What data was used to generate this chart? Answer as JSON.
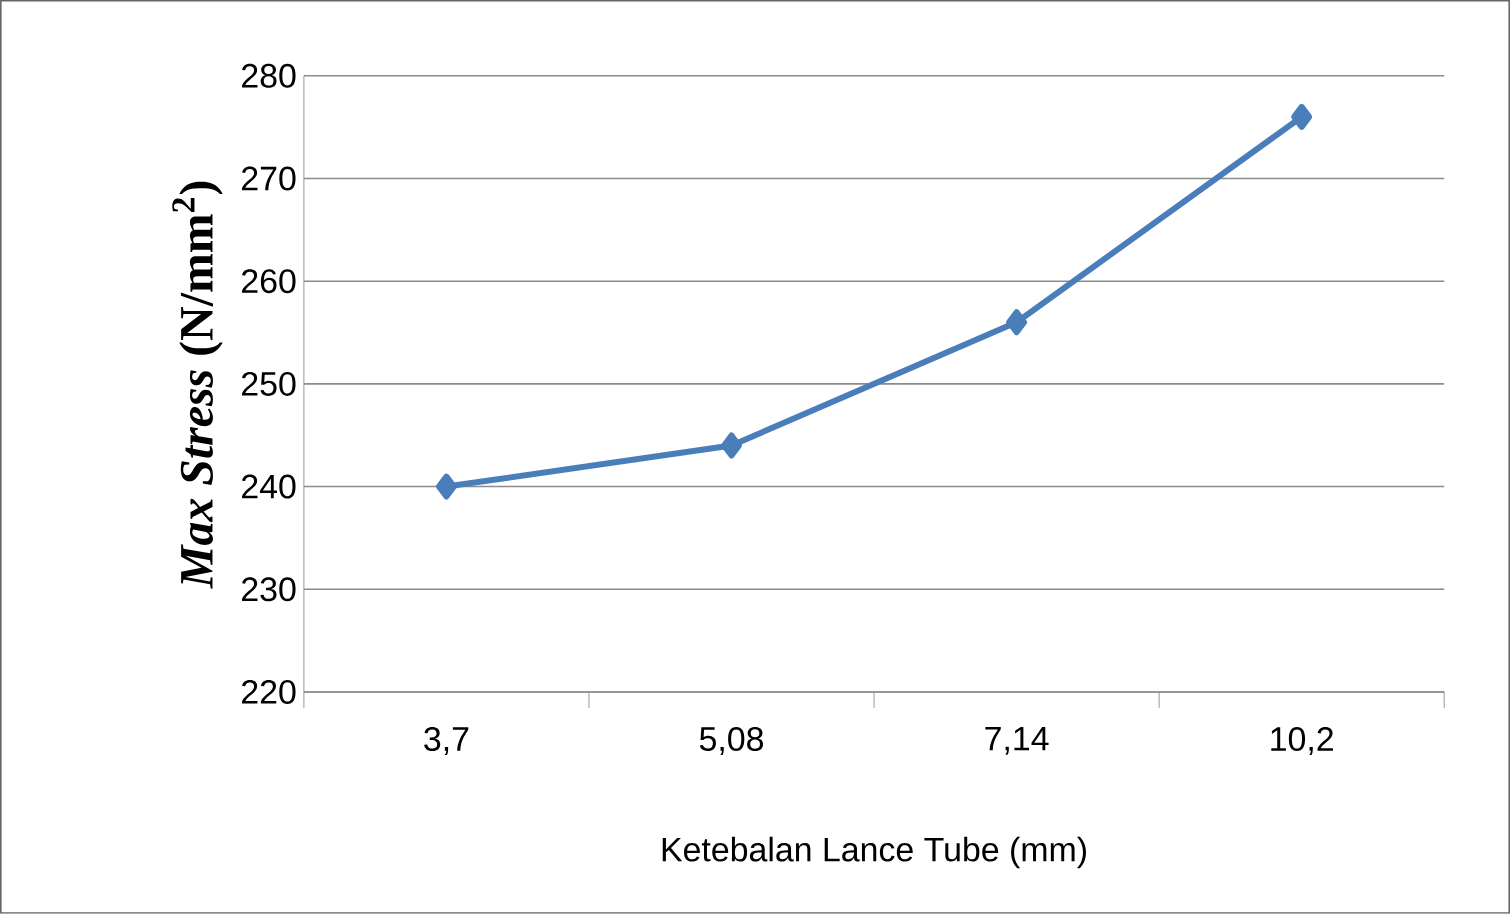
{
  "chart_data": {
    "type": "line",
    "ylabel": "*Max Stress* (N/mm$^{2}$)",
    "xlabel": "Ketebalan Lance Tube (mm)",
    "categories": [
      "3,7",
      "5,08",
      "7,14",
      "10,2"
    ],
    "series": [
      {
        "color": "#4a7ebb",
        "values": [
          240,
          244,
          256,
          276
        ]
      }
    ],
    "ylim": [
      220,
      280
    ],
    "yticks": [
      220,
      230,
      240,
      250,
      260,
      270,
      280
    ],
    "grid": "y",
    "marker": "diamond",
    "line_style": "solid"
  }
}
